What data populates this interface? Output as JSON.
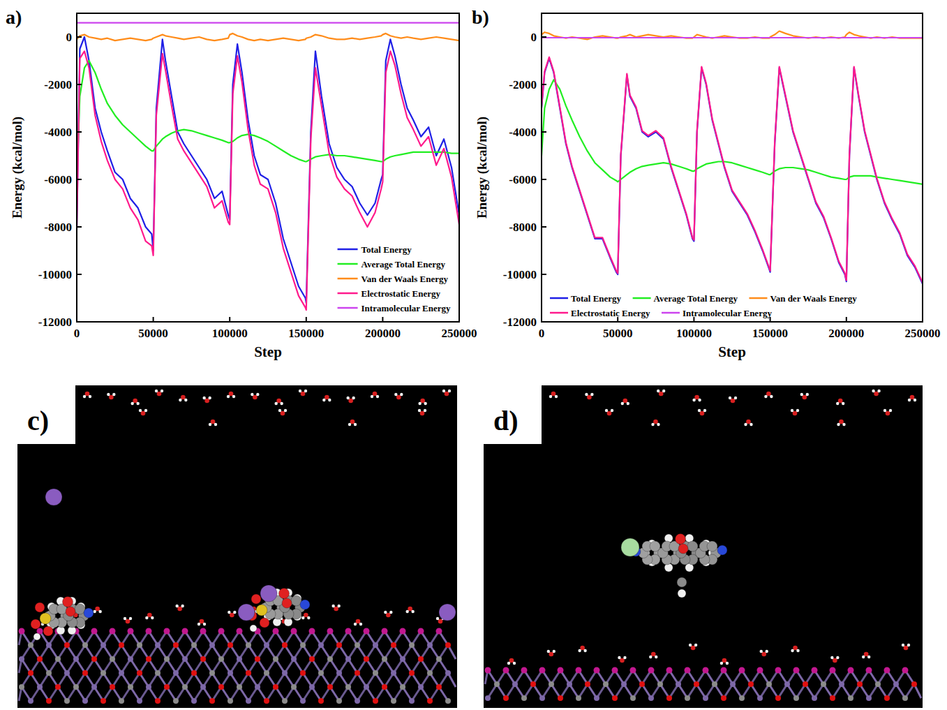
{
  "panel_labels": [
    "a)",
    "b)",
    "c)",
    "d)"
  ],
  "chart_data": [
    {
      "type": "line",
      "xlabel": "Step",
      "ylabel": "Energy (kcal/mol)",
      "xlim": [
        0,
        250000
      ],
      "ylim": [
        -12000,
        1000
      ],
      "xticks": [
        0,
        50000,
        100000,
        150000,
        200000,
        250000
      ],
      "yticks": [
        -12000,
        -10000,
        -8000,
        -6000,
        -4000,
        -2000,
        0
      ],
      "grid": false,
      "legend": "lower right",
      "x": [
        0,
        2000,
        5000,
        8000,
        12000,
        16000,
        20000,
        25000,
        30000,
        35000,
        40000,
        45000,
        49000,
        50000,
        52000,
        56000,
        58000,
        62000,
        66000,
        70000,
        75000,
        80000,
        85000,
        90000,
        95000,
        99000,
        100000,
        102000,
        105000,
        108000,
        112000,
        116000,
        120000,
        125000,
        130000,
        135000,
        140000,
        145000,
        149500,
        150000,
        153000,
        156000,
        160000,
        165000,
        170000,
        175000,
        180000,
        185000,
        190000,
        195000,
        199000,
        200000,
        202000,
        205000,
        208000,
        212000,
        216000,
        220000,
        225000,
        230000,
        235000,
        240000,
        245000,
        250000
      ],
      "series": [
        {
          "name": "Total Energy",
          "color": "#1f1fe6",
          "values": [
            -8000,
            -500,
            0,
            -1000,
            -3000,
            -4000,
            -4800,
            -5700,
            -6000,
            -6800,
            -7200,
            -8000,
            -8300,
            -9000,
            -3000,
            -100,
            -1000,
            -2500,
            -4000,
            -4500,
            -5000,
            -5500,
            -6000,
            -6800,
            -6500,
            -7500,
            -7700,
            -2000,
            -300,
            -1500,
            -3500,
            -5000,
            -5800,
            -6000,
            -7000,
            -8500,
            -9500,
            -10500,
            -11000,
            -11200,
            -4000,
            -600,
            -2500,
            -4500,
            -5500,
            -6000,
            -6300,
            -7000,
            -7500,
            -7000,
            -6000,
            -5800,
            -1000,
            -100,
            -800,
            -2000,
            -3000,
            -3500,
            -4200,
            -3800,
            -5000,
            -4300,
            -5500,
            -7500
          ]
        },
        {
          "name": "Average Total Energy",
          "color": "#22ee22",
          "values": [
            -6000,
            -2500,
            -1300,
            -1000,
            -1500,
            -2200,
            -2800,
            -3300,
            -3700,
            -4000,
            -4300,
            -4600,
            -4800,
            -4800,
            -4600,
            -4300,
            -4200,
            -4050,
            -3950,
            -3900,
            -3950,
            -4050,
            -4150,
            -4250,
            -4350,
            -4450,
            -4450,
            -4400,
            -4250,
            -4150,
            -4100,
            -4150,
            -4250,
            -4400,
            -4600,
            -4800,
            -5000,
            -5150,
            -5250,
            -5250,
            -5150,
            -5050,
            -5000,
            -4950,
            -5000,
            -5000,
            -5050,
            -5100,
            -5150,
            -5200,
            -5250,
            -5250,
            -5150,
            -5050,
            -5000,
            -4950,
            -4900,
            -4850,
            -4850,
            -4850,
            -4850,
            -4850,
            -4900,
            -4900
          ]
        },
        {
          "name": "Van der Waals Energy",
          "color": "#ff8c1a",
          "values": [
            -100,
            50,
            100,
            0,
            -50,
            -100,
            -50,
            -150,
            -100,
            -50,
            -100,
            -150,
            -100,
            -50,
            0,
            100,
            50,
            0,
            -50,
            -100,
            -50,
            0,
            -100,
            -150,
            -100,
            -50,
            100,
            150,
            50,
            0,
            -100,
            -150,
            -100,
            -150,
            -100,
            -50,
            -100,
            -150,
            -100,
            -50,
            0,
            100,
            50,
            -50,
            -100,
            -100,
            -50,
            -100,
            -50,
            0,
            50,
            100,
            150,
            50,
            0,
            -50,
            0,
            -50,
            -100,
            -50,
            0,
            -50,
            -100,
            -150
          ]
        },
        {
          "name": "Electrostatic Energy",
          "color": "#ff1a8c",
          "values": [
            -8100,
            -900,
            -600,
            -1300,
            -3300,
            -4400,
            -5200,
            -6000,
            -6400,
            -7200,
            -7700,
            -8600,
            -8800,
            -9200,
            -3300,
            -700,
            -1400,
            -2900,
            -4300,
            -4800,
            -5300,
            -5800,
            -6300,
            -7200,
            -6900,
            -7800,
            -7900,
            -2400,
            -800,
            -1900,
            -3900,
            -5400,
            -6200,
            -6400,
            -7400,
            -8900,
            -9900,
            -10900,
            -11400,
            -11500,
            -4300,
            -1300,
            -2900,
            -4900,
            -5900,
            -6400,
            -6700,
            -7400,
            -8000,
            -7400,
            -6400,
            -6100,
            -1500,
            -600,
            -1200,
            -2400,
            -3400,
            -3900,
            -4600,
            -4200,
            -5400,
            -4700,
            -5900,
            -7900
          ]
        },
        {
          "name": "Intramolecular Energy",
          "color": "#cc44ee",
          "x": [
            0,
            250000
          ],
          "values": [
            600,
            600
          ]
        }
      ]
    },
    {
      "type": "line",
      "xlabel": "Step",
      "ylabel": "Energy (kcal/mol)",
      "xlim": [
        0,
        250000
      ],
      "ylim": [
        -12000,
        1000
      ],
      "xticks": [
        0,
        50000,
        100000,
        150000,
        200000,
        250000
      ],
      "yticks": [
        -12000,
        -10000,
        -8000,
        -6000,
        -4000,
        -2000,
        0
      ],
      "grid": false,
      "legend": "bottom",
      "x": [
        0,
        2000,
        5000,
        8000,
        12000,
        16000,
        20000,
        25000,
        30000,
        35000,
        40000,
        45000,
        49000,
        50000,
        52000,
        56000,
        58000,
        62000,
        66000,
        70000,
        75000,
        80000,
        85000,
        90000,
        95000,
        99000,
        100000,
        102000,
        105000,
        108000,
        112000,
        116000,
        120000,
        125000,
        130000,
        135000,
        140000,
        145000,
        149500,
        150000,
        153000,
        156000,
        160000,
        165000,
        170000,
        175000,
        180000,
        185000,
        190000,
        195000,
        199000,
        200000,
        202000,
        205000,
        208000,
        212000,
        216000,
        220000,
        225000,
        230000,
        235000,
        240000,
        245000,
        250000
      ],
      "series": [
        {
          "name": "Total Energy",
          "color": "#1f1fe6",
          "values": [
            -3000,
            -1500,
            -900,
            -1500,
            -3000,
            -4500,
            -5500,
            -6500,
            -7500,
            -8500,
            -8500,
            -9300,
            -9900,
            -10000,
            -5000,
            -1600,
            -2500,
            -3000,
            -4000,
            -4200,
            -4000,
            -4300,
            -5500,
            -6500,
            -7500,
            -8500,
            -8600,
            -4000,
            -1300,
            -2000,
            -3500,
            -4500,
            -5500,
            -6500,
            -7000,
            -7500,
            -8200,
            -9000,
            -9800,
            -9900,
            -4500,
            -1300,
            -2500,
            -4000,
            -5000,
            -6000,
            -7000,
            -7600,
            -8500,
            -9500,
            -10000,
            -10300,
            -5000,
            -1300,
            -2500,
            -4000,
            -5000,
            -6000,
            -7000,
            -7700,
            -8300,
            -9200,
            -9700,
            -10400
          ]
        },
        {
          "name": "Average Total Energy",
          "color": "#22ee22",
          "values": [
            -5000,
            -3000,
            -2200,
            -1800,
            -2200,
            -2900,
            -3500,
            -4200,
            -4800,
            -5300,
            -5600,
            -5900,
            -6050,
            -6100,
            -6000,
            -5800,
            -5700,
            -5550,
            -5450,
            -5400,
            -5350,
            -5300,
            -5350,
            -5450,
            -5550,
            -5650,
            -5650,
            -5550,
            -5450,
            -5350,
            -5300,
            -5250,
            -5250,
            -5300,
            -5400,
            -5500,
            -5600,
            -5700,
            -5800,
            -5800,
            -5650,
            -5550,
            -5500,
            -5500,
            -5550,
            -5600,
            -5700,
            -5800,
            -5900,
            -5950,
            -6000,
            -6000,
            -5900,
            -5850,
            -5850,
            -5850,
            -5850,
            -5900,
            -5950,
            -6000,
            -6050,
            -6100,
            -6150,
            -6200
          ]
        },
        {
          "name": "Van der Waals Energy",
          "color": "#ff8c1a",
          "values": [
            100,
            200,
            150,
            50,
            0,
            -50,
            0,
            -50,
            -100,
            0,
            50,
            0,
            -50,
            -50,
            0,
            50,
            100,
            0,
            50,
            100,
            50,
            0,
            50,
            0,
            -50,
            -50,
            0,
            100,
            50,
            0,
            -50,
            0,
            50,
            0,
            -50,
            -50,
            0,
            -50,
            -50,
            0,
            100,
            250,
            150,
            50,
            0,
            -50,
            0,
            -50,
            0,
            -50,
            0,
            100,
            200,
            100,
            50,
            0,
            -50,
            0,
            -50,
            0,
            -50,
            -50,
            -50,
            -50
          ]
        },
        {
          "name": "Electrostatic Energy",
          "color": "#ff1a8c",
          "values": [
            -2950,
            -1450,
            -850,
            -1450,
            -2950,
            -4450,
            -5450,
            -6450,
            -7450,
            -8450,
            -8450,
            -9250,
            -9850,
            -9950,
            -4950,
            -1550,
            -2450,
            -2950,
            -3950,
            -4150,
            -3950,
            -4250,
            -5450,
            -6450,
            -7450,
            -8450,
            -8550,
            -3950,
            -1250,
            -1950,
            -3450,
            -4450,
            -5450,
            -6450,
            -6950,
            -7450,
            -8150,
            -8950,
            -9750,
            -9850,
            -4450,
            -1250,
            -2450,
            -3950,
            -4950,
            -5950,
            -6950,
            -7550,
            -8450,
            -9450,
            -9950,
            -10250,
            -4950,
            -1250,
            -2450,
            -3950,
            -4950,
            -5950,
            -6950,
            -7650,
            -8250,
            -9150,
            -9650,
            -10350
          ]
        },
        {
          "name": "Intramolecular Energy",
          "color": "#cc44ee",
          "x": [
            0,
            250000
          ],
          "values": [
            -30,
            -30
          ]
        }
      ]
    }
  ]
}
